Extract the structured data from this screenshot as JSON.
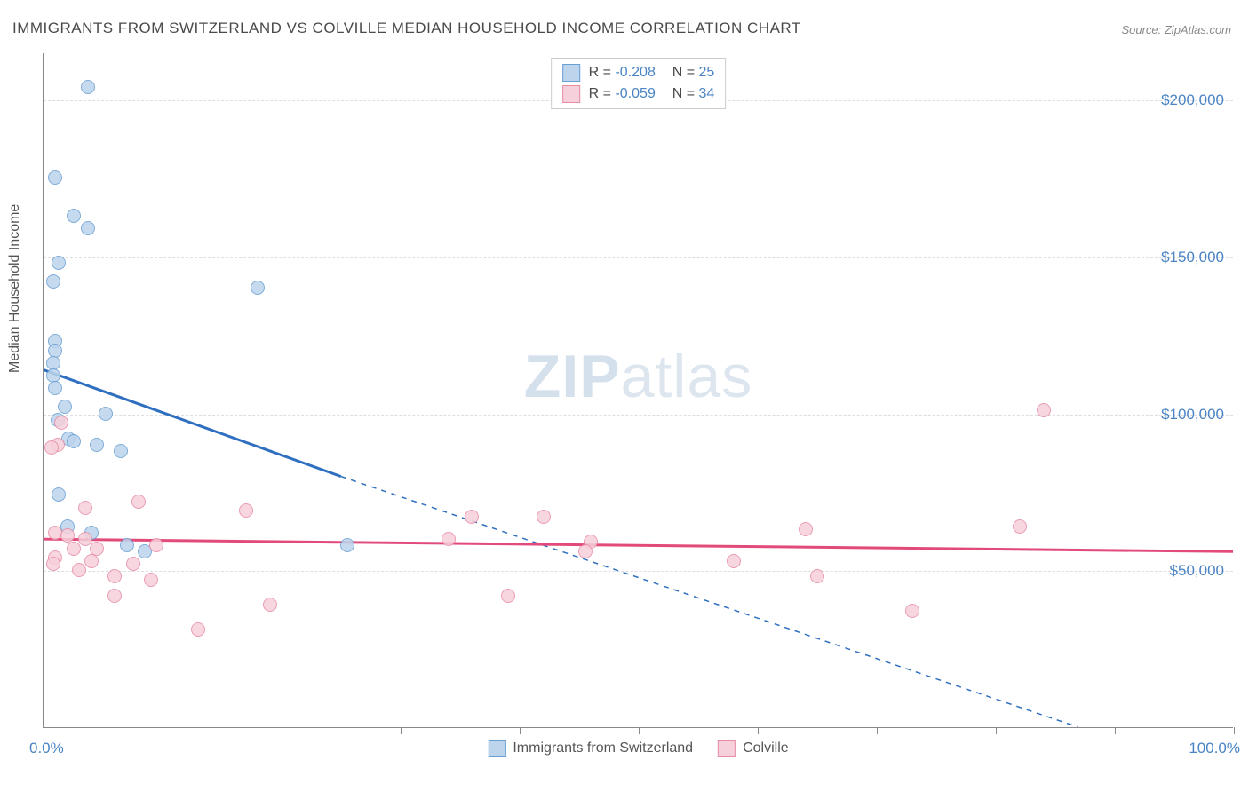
{
  "title": "IMMIGRANTS FROM SWITZERLAND VS COLVILLE MEDIAN HOUSEHOLD INCOME CORRELATION CHART",
  "source": "Source: ZipAtlas.com",
  "ylabel": "Median Household Income",
  "watermark_zip": "ZIP",
  "watermark_atlas": "atlas",
  "chart": {
    "type": "scatter",
    "xlim": [
      0,
      100
    ],
    "ylim": [
      0,
      215000
    ],
    "x_axis_label_min": "0.0%",
    "x_axis_label_max": "100.0%",
    "y_ticks": [
      50000,
      100000,
      150000,
      200000
    ],
    "y_tick_labels": [
      "$50,000",
      "$100,000",
      "$150,000",
      "$200,000"
    ],
    "x_ticks": [
      0,
      10,
      20,
      30,
      40,
      50,
      60,
      70,
      80,
      90,
      100
    ],
    "grid_color": "#dddddd",
    "axis_color": "#888888",
    "background_color": "#ffffff",
    "tick_label_color": "#4a84c4",
    "marker_radius": 8,
    "marker_border_width": 1.5,
    "series": [
      {
        "name": "Immigrants from Switzerland",
        "fill_color": "#bcd4ec",
        "stroke_color": "#6a9fd4",
        "line_color": "#2f6fc0",
        "R": "-0.208",
        "N": "25",
        "trend": {
          "x_solid_start": 0,
          "y_solid_start": 114000,
          "x_solid_end": 25,
          "y_solid_end": 80000,
          "x_dash_end": 87,
          "y_dash_end": 0
        },
        "points": [
          {
            "x": 3.7,
            "y": 204000
          },
          {
            "x": 1.0,
            "y": 175000
          },
          {
            "x": 2.5,
            "y": 163000
          },
          {
            "x": 3.7,
            "y": 159000
          },
          {
            "x": 1.3,
            "y": 148000
          },
          {
            "x": 0.8,
            "y": 142000
          },
          {
            "x": 18.0,
            "y": 140000
          },
          {
            "x": 1.0,
            "y": 123000
          },
          {
            "x": 1.0,
            "y": 120000
          },
          {
            "x": 0.8,
            "y": 116000
          },
          {
            "x": 0.8,
            "y": 112000
          },
          {
            "x": 1.0,
            "y": 108000
          },
          {
            "x": 1.8,
            "y": 102000
          },
          {
            "x": 5.2,
            "y": 100000
          },
          {
            "x": 1.2,
            "y": 98000
          },
          {
            "x": 2.1,
            "y": 92000
          },
          {
            "x": 2.5,
            "y": 91000
          },
          {
            "x": 4.5,
            "y": 90000
          },
          {
            "x": 6.5,
            "y": 88000
          },
          {
            "x": 1.3,
            "y": 74000
          },
          {
            "x": 2.0,
            "y": 64000
          },
          {
            "x": 4.0,
            "y": 62000
          },
          {
            "x": 7.0,
            "y": 58000
          },
          {
            "x": 8.5,
            "y": 56000
          },
          {
            "x": 25.5,
            "y": 58000
          }
        ]
      },
      {
        "name": "Colville",
        "fill_color": "#f6d0da",
        "stroke_color": "#e88ca5",
        "line_color": "#e24a7a",
        "R": "-0.059",
        "N": "34",
        "trend": {
          "x_solid_start": 0,
          "y_solid_start": 60000,
          "x_solid_end": 100,
          "y_solid_end": 56000,
          "x_dash_end": 100,
          "y_dash_end": 56000
        },
        "points": [
          {
            "x": 84.0,
            "y": 101000
          },
          {
            "x": 1.5,
            "y": 97000
          },
          {
            "x": 1.2,
            "y": 90000
          },
          {
            "x": 0.7,
            "y": 89000
          },
          {
            "x": 8.0,
            "y": 72000
          },
          {
            "x": 3.5,
            "y": 70000
          },
          {
            "x": 17.0,
            "y": 69000
          },
          {
            "x": 36.0,
            "y": 67000
          },
          {
            "x": 42.0,
            "y": 67000
          },
          {
            "x": 82.0,
            "y": 64000
          },
          {
            "x": 64.0,
            "y": 63000
          },
          {
            "x": 1.0,
            "y": 62000
          },
          {
            "x": 2.0,
            "y": 61000
          },
          {
            "x": 3.5,
            "y": 60000
          },
          {
            "x": 34.0,
            "y": 60000
          },
          {
            "x": 46.0,
            "y": 59000
          },
          {
            "x": 9.5,
            "y": 58000
          },
          {
            "x": 2.5,
            "y": 57000
          },
          {
            "x": 4.5,
            "y": 57000
          },
          {
            "x": 45.5,
            "y": 56000
          },
          {
            "x": 58.0,
            "y": 53000
          },
          {
            "x": 1.0,
            "y": 54000
          },
          {
            "x": 4.0,
            "y": 53000
          },
          {
            "x": 7.5,
            "y": 52000
          },
          {
            "x": 3.0,
            "y": 50000
          },
          {
            "x": 6.0,
            "y": 48000
          },
          {
            "x": 9.0,
            "y": 47000
          },
          {
            "x": 65.0,
            "y": 48000
          },
          {
            "x": 39.0,
            "y": 42000
          },
          {
            "x": 73.0,
            "y": 37000
          },
          {
            "x": 19.0,
            "y": 39000
          },
          {
            "x": 6.0,
            "y": 42000
          },
          {
            "x": 13.0,
            "y": 31000
          },
          {
            "x": 0.8,
            "y": 52000
          }
        ]
      }
    ],
    "legend_bottom_labels": [
      "Immigrants from Switzerland",
      "Colville"
    ]
  }
}
